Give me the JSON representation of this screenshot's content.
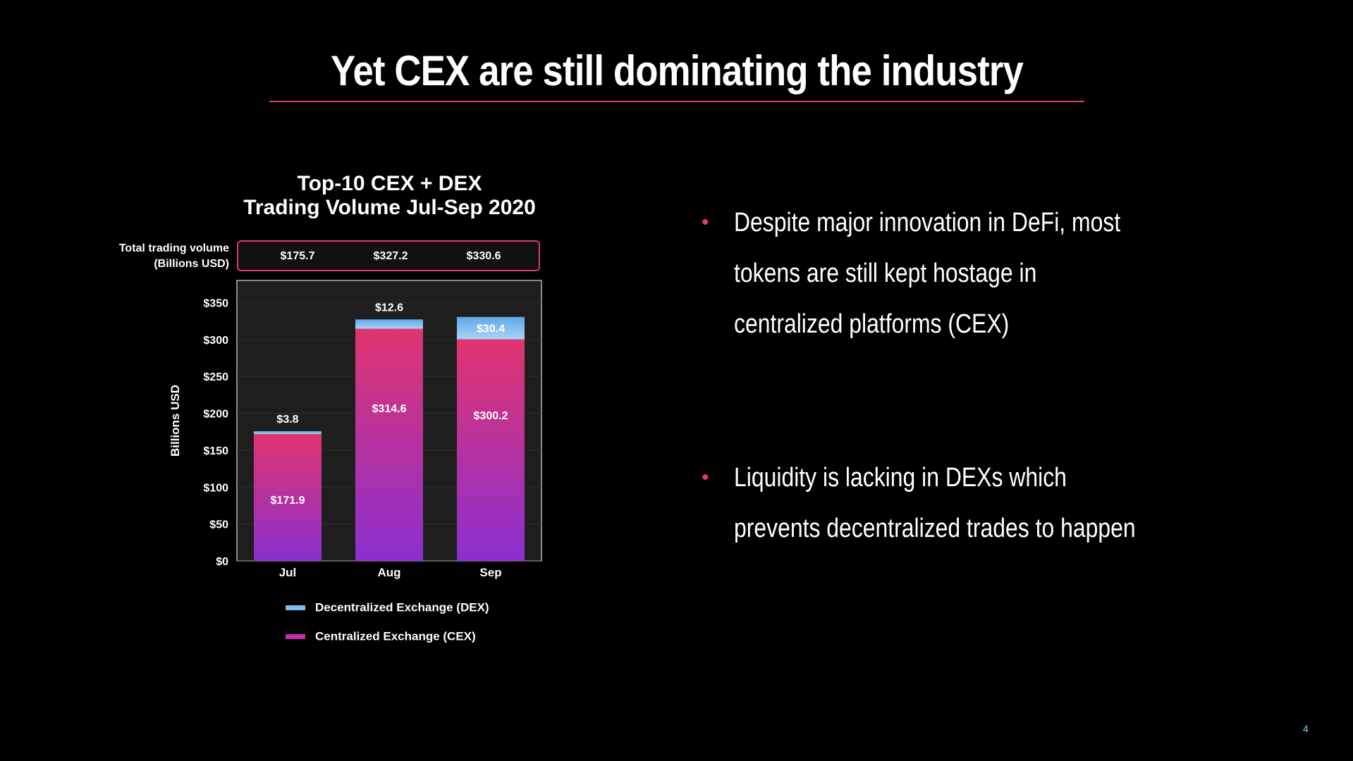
{
  "slide": {
    "title": "Yet CEX are still dominating the industry",
    "page_number": "4"
  },
  "chart_header": {
    "title_line1": "Top-10 CEX + DEX",
    "title_line2": "Trading Volume Jul-Sep 2020",
    "totals_label_line1": "Total trading volume",
    "totals_label_line2": "(Billions USD)",
    "totals": [
      "$175.7",
      "$327.2",
      "$330.6"
    ]
  },
  "chart_data": {
    "type": "bar",
    "stacked": true,
    "title": "Top-10 CEX + DEX Trading Volume Jul-Sep 2020",
    "categories": [
      "Jul",
      "Aug",
      "Sep"
    ],
    "series": [
      {
        "name": "Centralized Exchange (CEX)",
        "values": [
          171.9,
          314.6,
          300.2
        ],
        "labels": [
          "$171.9",
          "$314.6",
          "$300.2"
        ],
        "color_top": "#e0356f",
        "color_bottom": "#8b2fd0"
      },
      {
        "name": "Decentralized Exchange (DEX)",
        "values": [
          3.8,
          12.6,
          30.4
        ],
        "labels": [
          "$3.8",
          "$12.6",
          "$30.4"
        ],
        "color_top": "#5fa8e8",
        "color_bottom": "#a9d4f5"
      }
    ],
    "ylabel": "Billions USD",
    "ylim": [
      0,
      380
    ],
    "yticks": [
      0,
      50,
      100,
      150,
      200,
      250,
      300,
      350
    ],
    "ytick_labels": [
      "$0",
      "$50",
      "$100",
      "$150",
      "$200",
      "$250",
      "$300",
      "$350"
    ],
    "grid": true,
    "legend_placement": "bottom"
  },
  "bullets": [
    "Despite major innovation in DeFi, most tokens are still kept hostage in centralized platforms (CEX)",
    "Liquidity is lacking in DEXs which prevents decentralized trades to happen"
  ],
  "colors": {
    "accent": "#e0386f",
    "background": "#000000",
    "plot_background": "#1e1e1e"
  }
}
